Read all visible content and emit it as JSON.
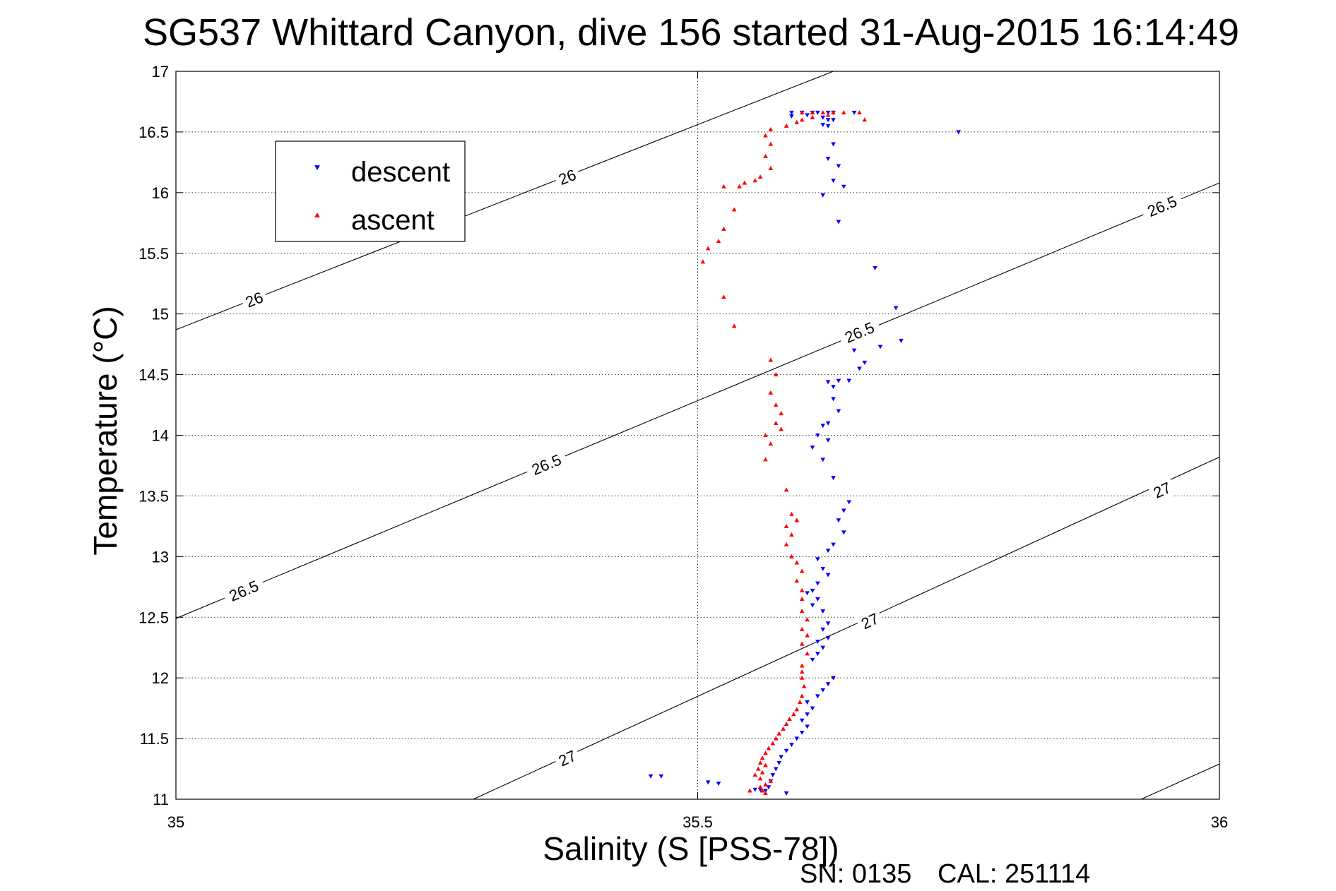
{
  "chart_data": {
    "type": "scatter",
    "title": "SG537 Whittard Canyon, dive 156 started 31-Aug-2015 16:14:49",
    "xlabel": "Salinity (S [PSS-78])",
    "ylabel": "Temperature (°C)",
    "xlim": [
      35,
      36
    ],
    "ylim": [
      11,
      17
    ],
    "xticks": [
      "35",
      "35.5",
      "36"
    ],
    "yticks": [
      "11",
      "11.5",
      "12",
      "12.5",
      "13",
      "13.5",
      "14",
      "14.5",
      "15",
      "15.5",
      "16",
      "16.5",
      "17"
    ],
    "grid": true,
    "legend_position": "top-left",
    "contours": [
      {
        "level": "26",
        "points": [
          [
            35,
            14.87
          ],
          [
            35.63,
            17
          ]
        ],
        "labels": [
          [
            35.075,
            15.12
          ],
          [
            35.375,
            16.13
          ]
        ]
      },
      {
        "level": "26.5",
        "points": [
          [
            35,
            12.49
          ],
          [
            36,
            16.08
          ]
        ],
        "labels": [
          [
            35.065,
            12.72
          ],
          [
            35.355,
            13.76
          ],
          [
            35.655,
            14.85
          ],
          [
            35.945,
            15.89
          ]
        ]
      },
      {
        "level": "27",
        "points": [
          [
            35.285,
            11
          ],
          [
            36,
            13.82
          ]
        ],
        "labels": [
          [
            35.375,
            11.34
          ],
          [
            35.665,
            12.47
          ],
          [
            35.945,
            13.55
          ]
        ]
      },
      {
        "level": "",
        "points": [
          [
            35.925,
            11
          ],
          [
            36,
            11.29
          ]
        ],
        "labels": []
      }
    ],
    "series": [
      {
        "name": "descent",
        "color": "#0000ff",
        "marker": "triangle-down",
        "points": [
          [
            35.59,
            16.66
          ],
          [
            35.6,
            16.66
          ],
          [
            35.61,
            16.66
          ],
          [
            35.615,
            16.66
          ],
          [
            35.625,
            16.66
          ],
          [
            35.63,
            16.66
          ],
          [
            35.62,
            16.62
          ],
          [
            35.625,
            16.6
          ],
          [
            35.62,
            16.56
          ],
          [
            35.625,
            16.55
          ],
          [
            35.63,
            16.6
          ],
          [
            35.59,
            16.63
          ],
          [
            35.605,
            16.64
          ],
          [
            35.65,
            16.66
          ],
          [
            35.75,
            16.5
          ],
          [
            35.63,
            16.4
          ],
          [
            35.625,
            16.28
          ],
          [
            35.635,
            16.22
          ],
          [
            35.63,
            16.1
          ],
          [
            35.64,
            16.05
          ],
          [
            35.62,
            15.98
          ],
          [
            35.635,
            15.76
          ],
          [
            35.67,
            15.38
          ],
          [
            35.69,
            15.05
          ],
          [
            35.695,
            14.78
          ],
          [
            35.675,
            14.73
          ],
          [
            35.65,
            14.7
          ],
          [
            35.66,
            14.6
          ],
          [
            35.655,
            14.55
          ],
          [
            35.645,
            14.45
          ],
          [
            35.635,
            14.45
          ],
          [
            35.625,
            14.44
          ],
          [
            35.63,
            14.4
          ],
          [
            35.63,
            14.3
          ],
          [
            35.635,
            14.2
          ],
          [
            35.625,
            14.1
          ],
          [
            35.62,
            14.08
          ],
          [
            35.615,
            14.0
          ],
          [
            35.625,
            13.96
          ],
          [
            35.61,
            13.9
          ],
          [
            35.62,
            13.8
          ],
          [
            35.63,
            13.65
          ],
          [
            35.645,
            13.45
          ],
          [
            35.64,
            13.38
          ],
          [
            35.635,
            13.3
          ],
          [
            35.64,
            13.2
          ],
          [
            35.63,
            13.1
          ],
          [
            35.625,
            13.05
          ],
          [
            35.615,
            12.98
          ],
          [
            35.62,
            12.9
          ],
          [
            35.625,
            12.85
          ],
          [
            35.615,
            12.78
          ],
          [
            35.61,
            12.72
          ],
          [
            35.605,
            12.7
          ],
          [
            35.615,
            12.65
          ],
          [
            35.61,
            12.6
          ],
          [
            35.62,
            12.55
          ],
          [
            35.625,
            12.45
          ],
          [
            35.62,
            12.4
          ],
          [
            35.625,
            12.33
          ],
          [
            35.615,
            12.3
          ],
          [
            35.62,
            12.25
          ],
          [
            35.615,
            12.2
          ],
          [
            35.61,
            12.15
          ],
          [
            35.63,
            12.0
          ],
          [
            35.625,
            11.95
          ],
          [
            35.62,
            11.9
          ],
          [
            35.615,
            11.85
          ],
          [
            35.605,
            11.8
          ],
          [
            35.61,
            11.75
          ],
          [
            35.605,
            11.7
          ],
          [
            35.6,
            11.65
          ],
          [
            35.605,
            11.6
          ],
          [
            35.6,
            11.55
          ],
          [
            35.595,
            11.5
          ],
          [
            35.59,
            11.45
          ],
          [
            35.585,
            11.4
          ],
          [
            35.58,
            11.35
          ],
          [
            35.578,
            11.3
          ],
          [
            35.575,
            11.25
          ],
          [
            35.572,
            11.2
          ],
          [
            35.57,
            11.15
          ],
          [
            35.568,
            11.1
          ],
          [
            35.565,
            11.07
          ],
          [
            35.56,
            11.08
          ],
          [
            35.555,
            11.08
          ],
          [
            35.455,
            11.19
          ],
          [
            35.465,
            11.19
          ],
          [
            35.51,
            11.14
          ],
          [
            35.52,
            11.13
          ],
          [
            35.585,
            11.05
          ]
        ]
      },
      {
        "name": "ascent",
        "color": "#ff0000",
        "marker": "triangle-up",
        "points": [
          [
            35.6,
            16.66
          ],
          [
            35.61,
            16.66
          ],
          [
            35.62,
            16.66
          ],
          [
            35.63,
            16.66
          ],
          [
            35.64,
            16.66
          ],
          [
            35.625,
            16.64
          ],
          [
            35.655,
            16.66
          ],
          [
            35.66,
            16.6
          ],
          [
            35.61,
            16.62
          ],
          [
            35.6,
            16.6
          ],
          [
            35.595,
            16.58
          ],
          [
            35.585,
            16.55
          ],
          [
            35.57,
            16.52
          ],
          [
            35.565,
            16.47
          ],
          [
            35.57,
            16.4
          ],
          [
            35.565,
            16.3
          ],
          [
            35.57,
            16.2
          ],
          [
            35.56,
            16.13
          ],
          [
            35.555,
            16.1
          ],
          [
            35.545,
            16.08
          ],
          [
            35.54,
            16.05
          ],
          [
            35.525,
            16.05
          ],
          [
            35.535,
            15.86
          ],
          [
            35.525,
            15.7
          ],
          [
            35.52,
            15.6
          ],
          [
            35.51,
            15.54
          ],
          [
            35.505,
            15.43
          ],
          [
            35.525,
            15.14
          ],
          [
            35.535,
            14.9
          ],
          [
            35.57,
            14.62
          ],
          [
            35.575,
            14.5
          ],
          [
            35.57,
            14.35
          ],
          [
            35.575,
            14.25
          ],
          [
            35.58,
            14.18
          ],
          [
            35.575,
            14.1
          ],
          [
            35.58,
            14.05
          ],
          [
            35.565,
            14.0
          ],
          [
            35.57,
            13.93
          ],
          [
            35.565,
            13.8
          ],
          [
            35.585,
            13.55
          ],
          [
            35.59,
            13.35
          ],
          [
            35.595,
            13.3
          ],
          [
            35.585,
            13.25
          ],
          [
            35.59,
            13.18
          ],
          [
            35.585,
            13.1
          ],
          [
            35.59,
            13.0
          ],
          [
            35.595,
            12.95
          ],
          [
            35.6,
            12.88
          ],
          [
            35.595,
            12.8
          ],
          [
            35.6,
            12.72
          ],
          [
            35.6,
            12.65
          ],
          [
            35.6,
            12.55
          ],
          [
            35.605,
            12.48
          ],
          [
            35.6,
            12.4
          ],
          [
            35.605,
            12.35
          ],
          [
            35.6,
            12.28
          ],
          [
            35.605,
            12.2
          ],
          [
            35.6,
            12.1
          ],
          [
            35.6,
            12.05
          ],
          [
            35.6,
            12.0
          ],
          [
            35.602,
            11.93
          ],
          [
            35.6,
            11.85
          ],
          [
            35.598,
            11.8
          ],
          [
            35.595,
            11.74
          ],
          [
            35.592,
            11.7
          ],
          [
            35.588,
            11.66
          ],
          [
            35.585,
            11.62
          ],
          [
            35.582,
            11.58
          ],
          [
            35.578,
            11.54
          ],
          [
            35.575,
            11.5
          ],
          [
            35.572,
            11.46
          ],
          [
            35.568,
            11.42
          ],
          [
            35.565,
            11.38
          ],
          [
            35.562,
            11.34
          ],
          [
            35.56,
            11.3
          ],
          [
            35.565,
            11.28
          ],
          [
            35.558,
            11.25
          ],
          [
            35.562,
            11.22
          ],
          [
            35.555,
            11.2
          ],
          [
            35.56,
            11.17
          ],
          [
            35.57,
            11.15
          ],
          [
            35.565,
            11.12
          ],
          [
            35.56,
            11.1
          ],
          [
            35.562,
            11.07
          ],
          [
            35.565,
            11.05
          ],
          [
            35.55,
            11.07
          ]
        ]
      }
    ]
  },
  "footer": {
    "serial": "SN: 0135",
    "cal": "CAL: 251114"
  }
}
